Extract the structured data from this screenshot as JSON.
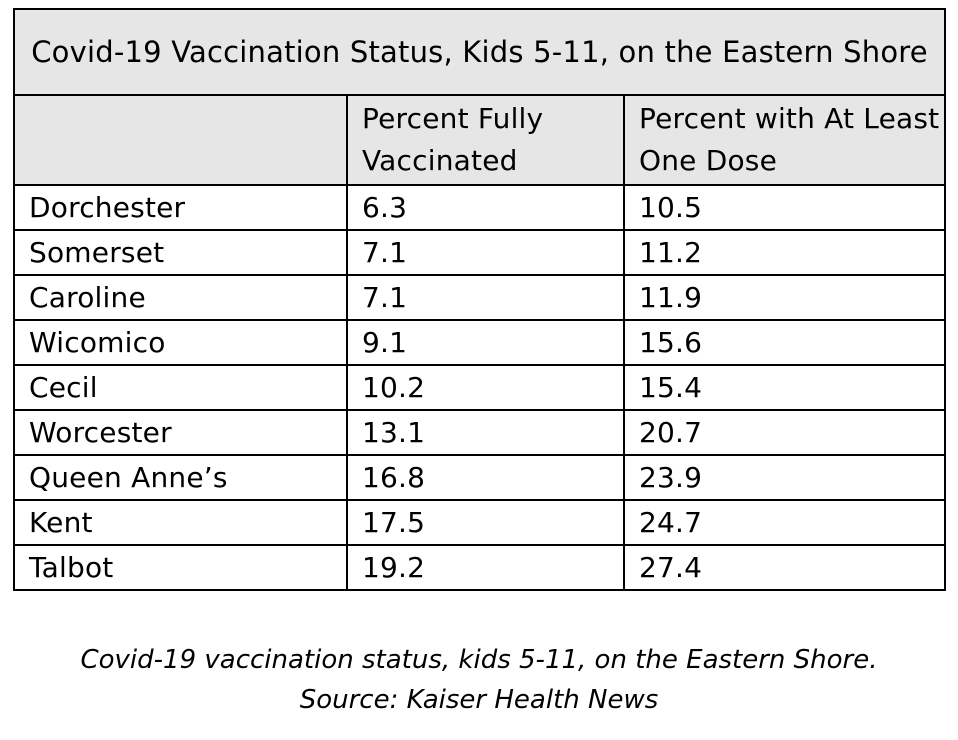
{
  "table": {
    "title": "Covid-19 Vaccination Status, Kids 5-11, on the Eastern Shore",
    "headers": {
      "county": "",
      "fully_vaccinated": "Percent Fully Vaccinated",
      "at_least_one_dose": "Percent with At Least One Dose"
    },
    "rows": [
      {
        "county": "Dorchester",
        "fully_vaccinated": "6.3",
        "at_least_one_dose": "10.5"
      },
      {
        "county": "Somerset",
        "fully_vaccinated": "7.1",
        "at_least_one_dose": "11.2"
      },
      {
        "county": "Caroline",
        "fully_vaccinated": "7.1",
        "at_least_one_dose": "11.9"
      },
      {
        "county": "Wicomico",
        "fully_vaccinated": "9.1",
        "at_least_one_dose": "15.6"
      },
      {
        "county": "Cecil",
        "fully_vaccinated": "10.2",
        "at_least_one_dose": "15.4"
      },
      {
        "county": "Worcester",
        "fully_vaccinated": "13.1",
        "at_least_one_dose": "20.7"
      },
      {
        "county": "Queen Anne’s",
        "fully_vaccinated": "16.8",
        "at_least_one_dose": "23.9"
      },
      {
        "county": "Kent",
        "fully_vaccinated": "17.5",
        "at_least_one_dose": "24.7"
      },
      {
        "county": "Talbot",
        "fully_vaccinated": "19.2",
        "at_least_one_dose": "27.4"
      }
    ]
  },
  "caption": {
    "line1": "Covid-19 vaccination status, kids 5-11, on the Eastern Shore.",
    "line2": "Source: Kaiser Health News"
  },
  "colors": {
    "header_background": "#e6e6e6",
    "border": "#000000",
    "row_background": "#ffffff"
  },
  "chart_data": {
    "type": "table",
    "title": "Covid-19 Vaccination Status, Kids 5-11, on the Eastern Shore",
    "categories": [
      "Dorchester",
      "Somerset",
      "Caroline",
      "Wicomico",
      "Cecil",
      "Worcester",
      "Queen Anne’s",
      "Kent",
      "Talbot"
    ],
    "series": [
      {
        "name": "Percent Fully Vaccinated",
        "values": [
          6.3,
          7.1,
          7.1,
          9.1,
          10.2,
          13.1,
          16.8,
          17.5,
          19.2
        ]
      },
      {
        "name": "Percent with At Least One Dose",
        "values": [
          10.5,
          11.2,
          11.9,
          15.6,
          15.4,
          20.7,
          23.9,
          24.7,
          27.4
        ]
      }
    ],
    "caption": "Covid-19 vaccination status, kids 5-11, on the Eastern Shore. Source: Kaiser Health News"
  }
}
